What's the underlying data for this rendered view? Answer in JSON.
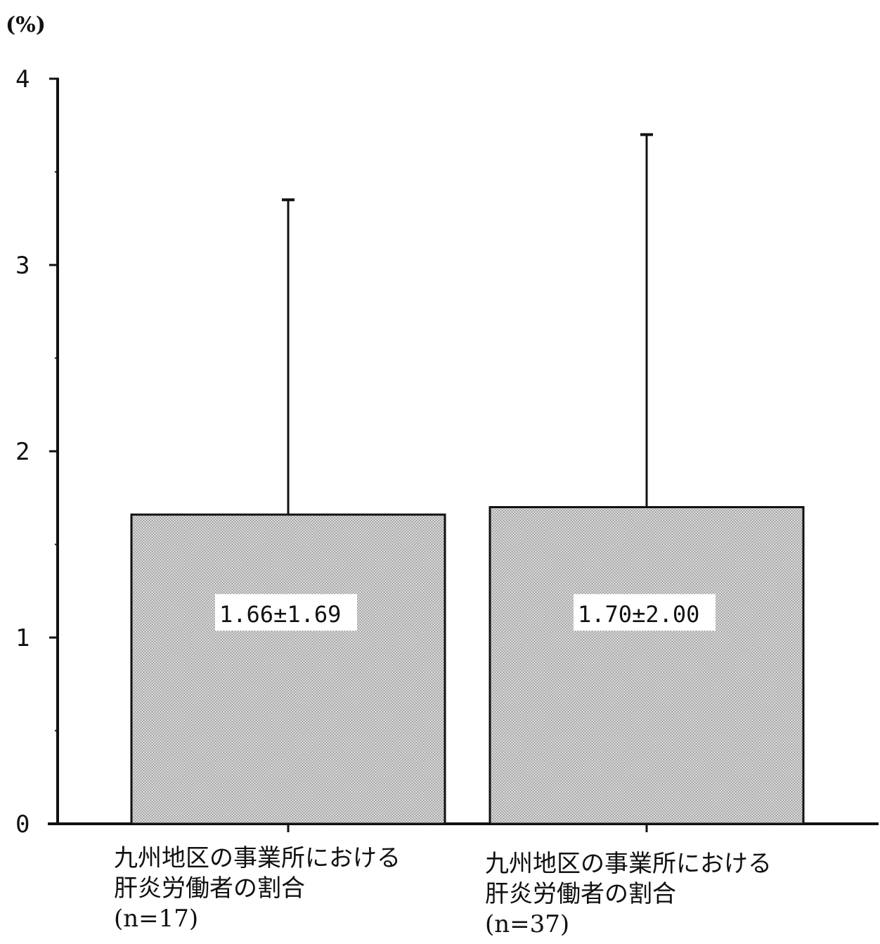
{
  "chart_data": {
    "type": "bar",
    "ylabel": "(%)",
    "ylim": [
      0,
      4
    ],
    "yticks": [
      "0",
      "1",
      "2",
      "3",
      "4"
    ],
    "categories": [
      {
        "line1": "九州地区の事業所における",
        "line2": "肝炎労働者の割合",
        "line3": "(n=17)"
      },
      {
        "line1": "九州地区の事業所における",
        "line2": "肝炎労働者の割合",
        "line3": "(n=37)"
      }
    ],
    "values": [
      1.66,
      1.7
    ],
    "errors": [
      1.69,
      2.0
    ],
    "labels": [
      "1.66±1.69",
      "1.70±2.00"
    ],
    "grid": false,
    "legend": "none",
    "colors": {
      "bar": "#b8b8b8",
      "axis": "#111111",
      "label_bg": "#ffffff"
    }
  }
}
